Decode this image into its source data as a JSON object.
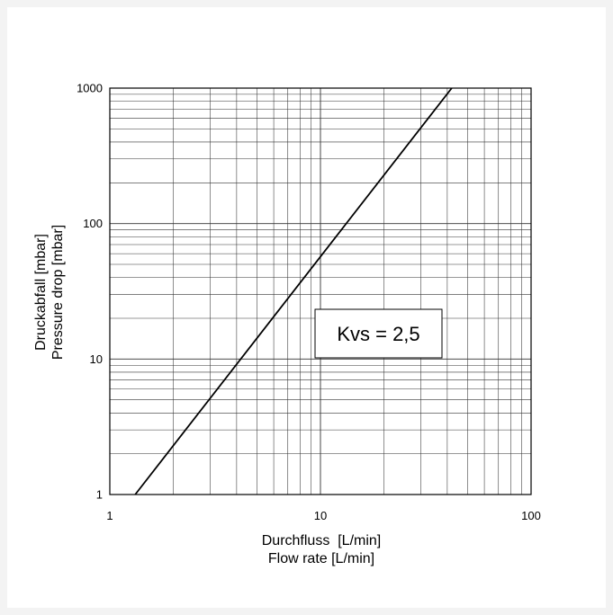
{
  "chart_data": {
    "type": "line",
    "scale": "log-log",
    "grid": true,
    "xlim": [
      1,
      100
    ],
    "ylim": [
      1,
      1000
    ],
    "x_ticks": [
      "1",
      "10",
      "100"
    ],
    "y_ticks": [
      "1",
      "10",
      "100",
      "1000"
    ],
    "xlabel_line1": "Durchfluss  [L/min]",
    "xlabel_line2": "Flow rate [L/min]",
    "ylabel_line1": "Druckabfall [mbar]",
    "ylabel_line2": "Pressure drop [mbar]",
    "annotation": "Kvs = 2,5",
    "series": [
      {
        "x": [
          1.32,
          42.0
        ],
        "y": [
          1,
          1000
        ]
      }
    ],
    "colors": {
      "line": "#000000",
      "grid": "#333333",
      "frame_bg": "#ffffff",
      "page_bg": "#f3f3f3"
    }
  }
}
